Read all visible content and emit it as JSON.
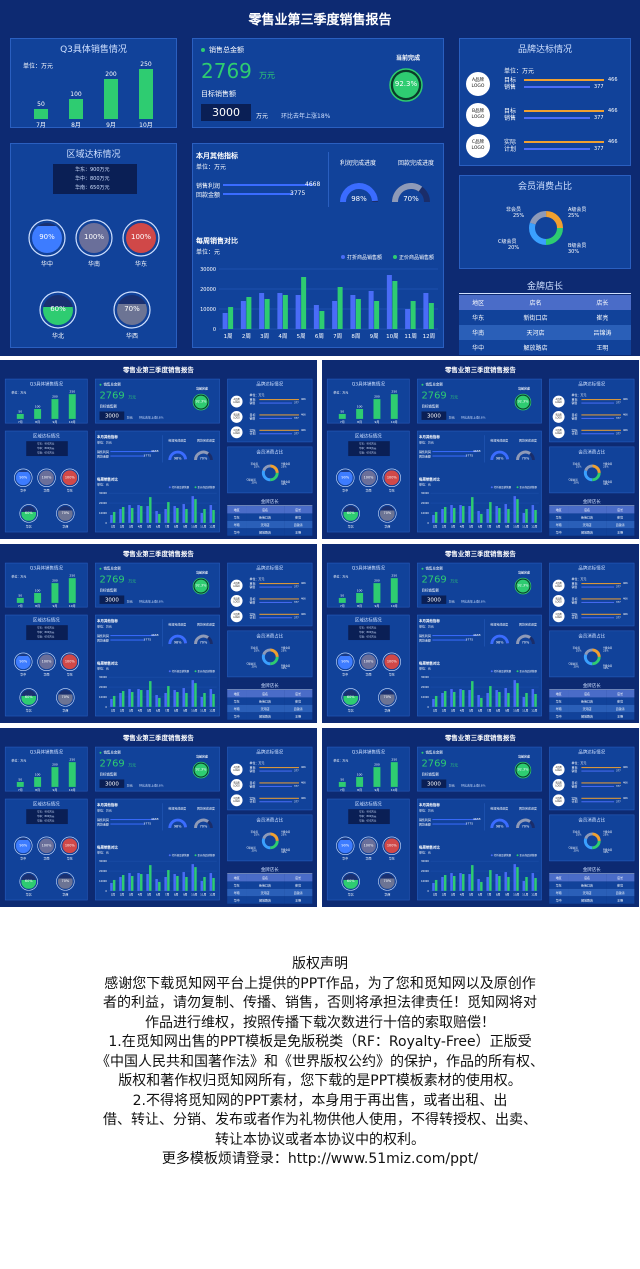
{
  "dashboard": {
    "title": "零售业第三季度销售报告",
    "q3": {
      "title": "Q3具体销售情况",
      "unit": "单位：万元",
      "categories": [
        "7月",
        "8月",
        "9月",
        "10月"
      ],
      "values": [
        50,
        100,
        200,
        250
      ]
    },
    "total": {
      "label": "销售总金额",
      "value": "2769",
      "unit": "万元",
      "target_label": "目标销售额",
      "target_value": "3000",
      "target_unit": "万元",
      "growth": "环比去年上涨18%",
      "complete_label": "当前完成",
      "complete_value": "92.3%"
    },
    "brand": {
      "title": "品牌达标情况",
      "unit": "单位：万元",
      "items": [
        {
          "logo": "A品牌\nLOGO",
          "label": "目标\n销售",
          "v1": "466",
          "v2": "377"
        },
        {
          "logo": "B品牌\nLOGO",
          "label": "目标\n销售",
          "v1": "466",
          "v2": "377"
        },
        {
          "logo": "C品牌\nLOGO",
          "label": "实际\n计划",
          "v1": "466",
          "v2": "377"
        }
      ]
    },
    "region": {
      "title": "区域达标情况",
      "legend": [
        "华东：900万元",
        "华中：800万元",
        "华南：650万元"
      ],
      "circles": [
        {
          "name": "华中",
          "value": "90%",
          "fill": 0.9,
          "color": "#3d7cff"
        },
        {
          "name": "华南",
          "value": "100%",
          "fill": 1.0,
          "color": "#6a6f9a"
        },
        {
          "name": "华东",
          "value": "100%",
          "fill": 1.0,
          "color": "#d04848"
        },
        {
          "name": "华北",
          "value": "60%",
          "fill": 0.6,
          "color": "#2ecc71"
        },
        {
          "name": "华西",
          "value": "70%",
          "fill": 0.7,
          "color": "#6c7494"
        }
      ]
    },
    "other": {
      "title": "本月其他指标",
      "unit": "单位：万元",
      "metrics": [
        {
          "label": "销售利润",
          "value": "4668"
        },
        {
          "label": "回款金额",
          "value": "3775"
        }
      ],
      "gauges": [
        {
          "label": "利润完成进度",
          "value": "98%",
          "fill": 0.98,
          "color": "#3a6cff"
        },
        {
          "label": "回款完成进度",
          "value": "70%",
          "fill": 0.7,
          "color": "#8e9ab8"
        }
      ]
    },
    "member": {
      "title": "会员消费占比",
      "labels": [
        {
          "name": "非会员",
          "value": "25%"
        },
        {
          "name": "A级会员",
          "value": "25%"
        },
        {
          "name": "C级会员",
          "value": "20%"
        },
        {
          "name": "B级会员",
          "value": "30%"
        }
      ]
    },
    "stores": {
      "title": "金牌店长",
      "headers": [
        "地区",
        "店名",
        "店长"
      ],
      "rows": [
        [
          "华东",
          "新街口店",
          "崔亮"
        ],
        [
          "华南",
          "天河店",
          "吕锦涛"
        ],
        [
          "华中",
          "解放路店",
          "王明"
        ]
      ]
    },
    "colors": {
      "background": "#0d2a72",
      "panel": "#11429a",
      "green": "#2ecc71",
      "blue": "#4a6cf7",
      "orange": "#f0a030"
    }
  },
  "chart_data": {
    "type": "bar",
    "title": "每周销售对比",
    "unit": "单位：元",
    "categories": [
      "1周",
      "2周",
      "3周",
      "4周",
      "5周",
      "6周",
      "7周",
      "8周",
      "9周",
      "10周",
      "11周",
      "12周"
    ],
    "ylim": [
      0,
      30000
    ],
    "yticks": [
      "0",
      "10000",
      "20000",
      "30000"
    ],
    "series": [
      {
        "name": "打折商品销售额",
        "color": "#4a6cf7",
        "values": [
          8000,
          14000,
          18000,
          18000,
          17000,
          12000,
          14000,
          17000,
          19000,
          27000,
          10000,
          18000
        ]
      },
      {
        "name": "正价商品销售额",
        "color": "#2ecc71",
        "values": [
          11000,
          16000,
          15000,
          17000,
          26000,
          9000,
          21000,
          15000,
          14000,
          24000,
          14000,
          13000
        ]
      }
    ]
  },
  "copyright": {
    "title": "版权声明",
    "lines": [
      "感谢您下载觅知网平台上提供的PPT作品，为了您和觅知网以及原创作",
      "者的利益，请勿复制、传播、销售，否则将承担法律责任！觅知网将对",
      "作品进行维权，按照传播下载次数进行十倍的索取赔偿！",
      "1.在觅知网出售的PPT模板是免版税类（RF：Royalty-Free）正版受",
      "《中国人民共和国著作法》和《世界版权公约》的保护，作品的所有权、",
      "版权和著作权归觅知网所有，您下载的是PPT模板素材的使用权。",
      "2.不得将觅知网的PPT素材，本身用于再出售，或者出租、出",
      "借、转让、分销、发布或者作为礼物供他人使用，不得转授权、出卖、",
      "转让本协议或者本协议中的权利。",
      "更多模板烦请登录：http://www.51miz.com/ppt/"
    ]
  }
}
